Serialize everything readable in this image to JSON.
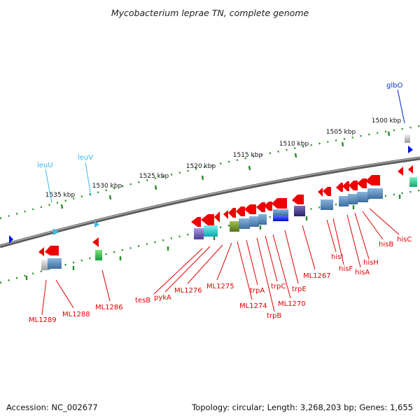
{
  "title": "Mycobacterium leprae TN, complete genome",
  "footer": {
    "accession": "Accession: NC_002677",
    "summary": "Topology: circular; Length: 3,268,203 bp; Genes: 1,655"
  },
  "colors": {
    "feature_label": "#e00000",
    "rna_label": "#33bbee",
    "glbO_label": "#0033cc",
    "arrow": "#ee0000",
    "backbone": "#888888",
    "tick": "#2b8a2b"
  },
  "scale_labels": [
    "1500 kbp",
    "1505 kbp",
    "1510 kbp",
    "1515 kbp",
    "1520 kbp",
    "1525 kbp",
    "1530 kbp",
    "1535 kbp"
  ],
  "upper_labels": [
    "glbO",
    "leuV",
    "leuU"
  ],
  "lower_labels": [
    "ML1289",
    "ML1288",
    "ML1286",
    "tesB",
    "pykA",
    "ML1276",
    "ML1275",
    "ML1274",
    "trpA",
    "trpB",
    "trpC",
    "ML1270",
    "trpE",
    "ML1267",
    "hisI",
    "hisF",
    "hisA",
    "hisH",
    "hisB",
    "hisC"
  ]
}
